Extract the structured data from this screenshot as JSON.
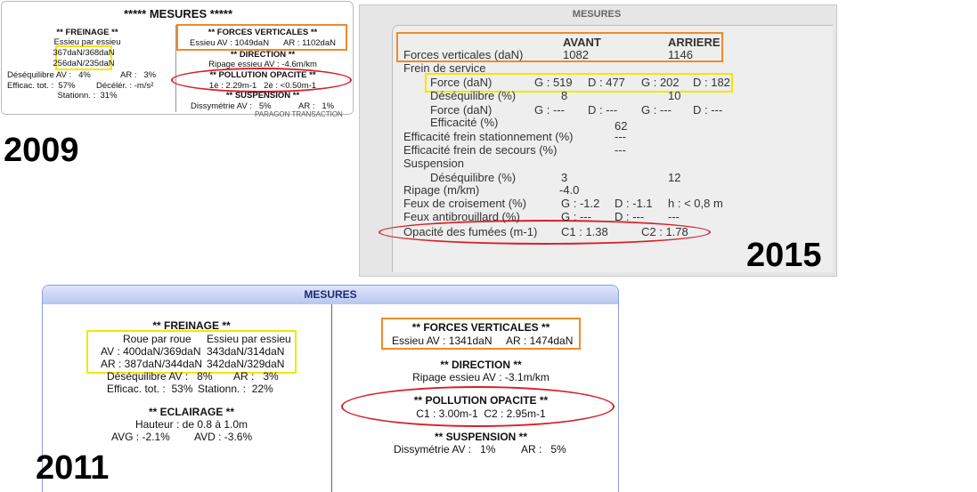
{
  "p2009": {
    "year": "2009",
    "title": "***** MESURES *****",
    "freinage": {
      "heading": "** FREINAGE **",
      "subheading": "Essieu par essieu",
      "axles": [
        "367daN/368daN",
        "256daN/235daN"
      ],
      "imbalance_av": "Déséquilibre AV :   4%",
      "imbalance_ar": "AR :   3%",
      "efficiency": "Efficac. tot. :  57%",
      "deceleration": "Décélér. : -m/s²",
      "parking": "Stationn. :  31%"
    },
    "forces": {
      "heading": "** FORCES VERTICALES **",
      "av": "Essieu AV : 1049daN",
      "ar": "AR : 1102daN"
    },
    "direction": {
      "heading": "** DIRECTION **",
      "value": "Ripage essieu AV : -4.6m/km"
    },
    "pollution": {
      "heading": "** POLLUTION OPACITE **",
      "value": "1è : 2.29m-1   2è : <0.50m-1"
    },
    "suspension": {
      "heading": "** SUSPENSION **",
      "av": "Dissymétrie AV :   5%",
      "ar": "AR :   1%"
    },
    "footer": "PARAGON TRANSACTION"
  },
  "p2015": {
    "year": "2015",
    "title": "MESURES",
    "columns": [
      "AVANT",
      "ARRIERE"
    ],
    "rows": [
      {
        "label": "Forces verticales (daN)",
        "cells": [
          "1082",
          "1146"
        ]
      },
      {
        "label": "Frein de service",
        "cells": []
      },
      {
        "label": "Force (daN)",
        "cells": [
          "G : 519",
          "D : 477",
          "G : 202",
          "D : 182"
        ]
      },
      {
        "label": "Déséquilibre (%)",
        "cells": [
          "8",
          "10"
        ]
      },
      {
        "label": "Force (daN)",
        "cells": [
          "G : ---",
          "D : ---",
          "G : ---",
          "D : ---"
        ]
      },
      {
        "label": "Efficacité (%)",
        "cells": [
          "62"
        ]
      },
      {
        "label": "Efficacité frein stationnement (%)",
        "cells": [
          "---"
        ]
      },
      {
        "label": "Efficacité frein de secours (%)",
        "cells": [
          "---"
        ]
      },
      {
        "label": "Suspension",
        "cells": []
      },
      {
        "label": "Déséquilibre (%)",
        "cells": [
          "3",
          "12"
        ]
      },
      {
        "label": "Ripage (m/km)",
        "cells": [
          "-4.0"
        ]
      },
      {
        "label": "Feux de croisement (%)",
        "cells": [
          "G : -1.2",
          "D : -1.1",
          "h : < 0,8 m"
        ]
      },
      {
        "label": "Feux antibrouillard (%)",
        "cells": [
          "G : ---",
          "D : ---",
          "---"
        ]
      },
      {
        "label": "Opacité des fumées (m-1)",
        "cells": [
          "C1 : 1.38",
          "C2 : 1.78"
        ]
      }
    ]
  },
  "p2011": {
    "year": "2011",
    "title": "MESURES",
    "freinage": {
      "heading": "** FREINAGE **",
      "col_wheel": "Roue par roue",
      "col_axle": "Essieu par essieu",
      "av_wheel": "AV : 400daN/369daN",
      "av_axle": "343daN/314daN",
      "ar_wheel": "AR : 387daN/344daN",
      "ar_axle": "342daN/329daN",
      "imbalance_av": "Déséquilibre AV :   8%",
      "imbalance_ar": "AR :   3%",
      "efficiency": "Efficac. tot. :  53%",
      "parking": "Stationn. :  22%"
    },
    "eclairage": {
      "heading": "** ECLAIRAGE **",
      "height": "Hauteur : de 0.8 à 1.0m",
      "avg": "AVG : -2.1%",
      "avd": "AVD : -3.6%"
    },
    "forces": {
      "heading": "** FORCES VERTICALES **",
      "av": "Essieu AV : 1341daN",
      "ar": "AR : 1474daN"
    },
    "direction": {
      "heading": "** DIRECTION **",
      "value": "Ripage essieu AV : -3.1m/km"
    },
    "pollution": {
      "heading": "** POLLUTION OPACITE **",
      "value": "C1 : 3.00m-1  C2 : 2.95m-1"
    },
    "suspension": {
      "heading": "** SUSPENSION **",
      "av": "Dissymétrie AV :   1%",
      "ar": "AR :   5%"
    }
  }
}
